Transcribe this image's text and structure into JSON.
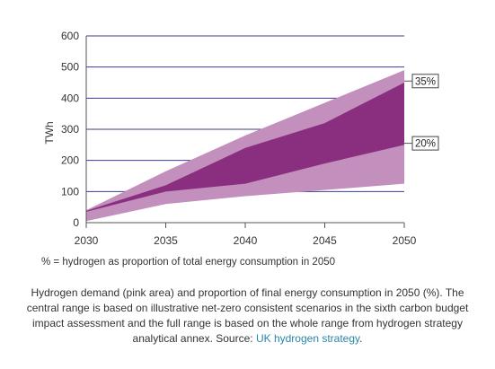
{
  "chart_data": {
    "type": "area",
    "x": [
      2030,
      2035,
      2040,
      2045,
      2050
    ],
    "xticks": [
      "2030",
      "2035",
      "2040",
      "2045",
      "2050"
    ],
    "yticks": [
      "0",
      "100",
      "200",
      "300",
      "400",
      "500",
      "600"
    ],
    "ylabel": "TWh",
    "ylim": [
      0,
      600
    ],
    "xlim": [
      2030,
      2050
    ],
    "grid": true,
    "series": [
      {
        "role": "full_range_lower",
        "values": [
          5,
          60,
          85,
          105,
          125
        ]
      },
      {
        "role": "central_range_lower",
        "values": [
          35,
          100,
          125,
          190,
          250
        ]
      },
      {
        "role": "central_range_upper",
        "values": [
          38,
          120,
          240,
          320,
          450
        ]
      },
      {
        "role": "full_range_upper",
        "values": [
          40,
          165,
          280,
          385,
          490
        ]
      }
    ],
    "annotations": [
      {
        "label": "35%",
        "at_x": 2050,
        "at_value": 455
      },
      {
        "label": "20%",
        "at_x": 2050,
        "at_value": 255
      }
    ],
    "colors": {
      "full_range": "#c390bd",
      "central_range": "#8a2f7f",
      "grid": "#3b3b8c"
    }
  },
  "note": "% = hydrogen as proportion of total energy consumption in 2050",
  "caption": {
    "text": "Hydrogen demand (pink area) and proportion of final energy consumption in 2050 (%). The central range is based on illustrative net-zero consistent scenarios in the sixth carbon budget impact assessment and the full range is based on the whole range from hydrogen strategy analytical annex. Source: ",
    "link_text": "UK hydrogen strategy",
    "end": "."
  }
}
